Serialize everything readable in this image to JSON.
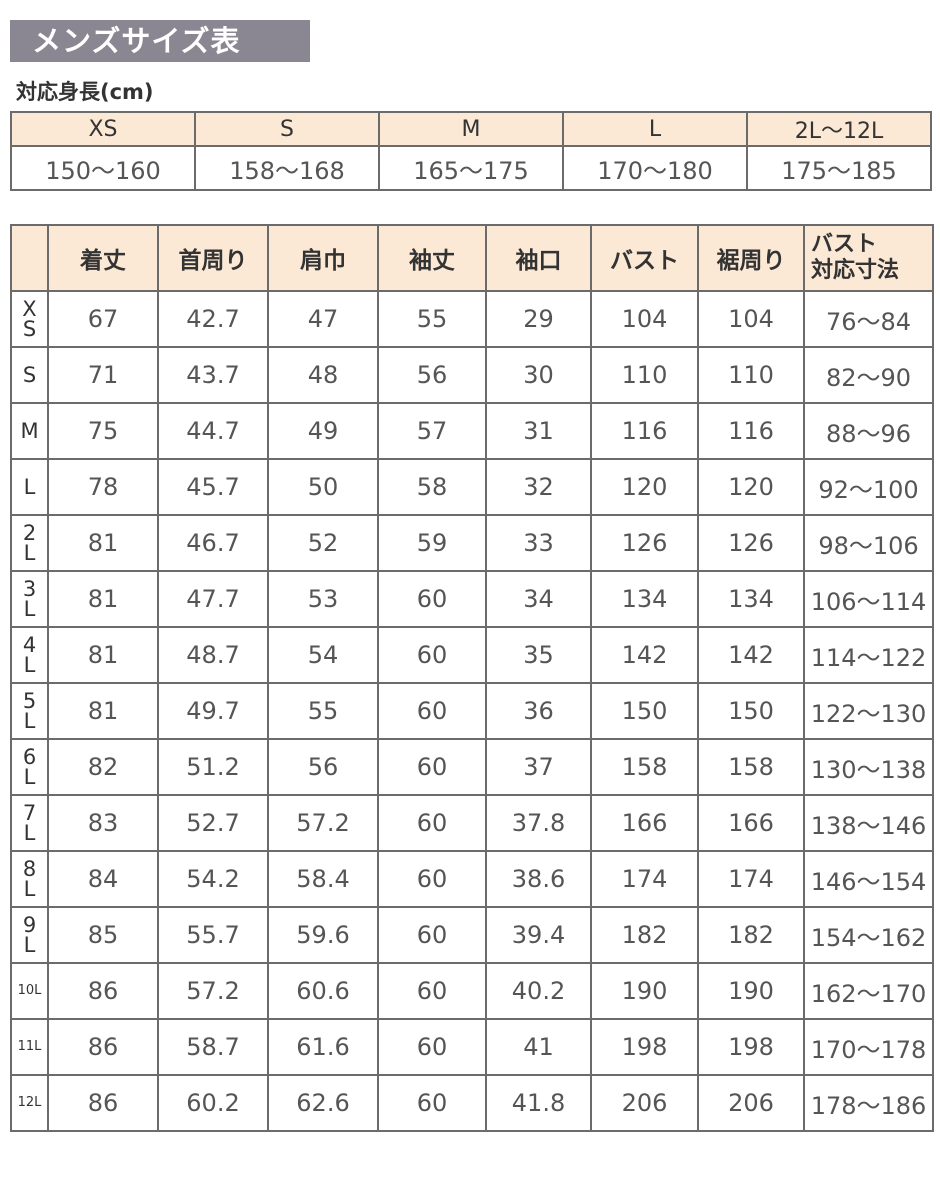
{
  "title": "メンズサイズ表",
  "height_table": {
    "caption": "対応身長(cm)",
    "sizes": [
      "XS",
      "S",
      "M",
      "L",
      "2L〜12L"
    ],
    "ranges": [
      "150〜160",
      "158〜168",
      "165〜175",
      "170〜180",
      "175〜185"
    ]
  },
  "size_table": {
    "headers": [
      "着丈",
      "首周り",
      "肩巾",
      "袖丈",
      "袖口",
      "バスト",
      "裾周り"
    ],
    "bust_header_line1": "バスト",
    "bust_header_line2": "対応寸法",
    "rows": [
      {
        "size": "XS",
        "values": [
          "67",
          "42.7",
          "47",
          "55",
          "29",
          "104",
          "104",
          "76〜84"
        ]
      },
      {
        "size": "S",
        "values": [
          "71",
          "43.7",
          "48",
          "56",
          "30",
          "110",
          "110",
          "82〜90"
        ]
      },
      {
        "size": "M",
        "values": [
          "75",
          "44.7",
          "49",
          "57",
          "31",
          "116",
          "116",
          "88〜96"
        ]
      },
      {
        "size": "L",
        "values": [
          "78",
          "45.7",
          "50",
          "58",
          "32",
          "120",
          "120",
          "92〜100"
        ]
      },
      {
        "size": "2L",
        "values": [
          "81",
          "46.7",
          "52",
          "59",
          "33",
          "126",
          "126",
          "98〜106"
        ]
      },
      {
        "size": "3L",
        "values": [
          "81",
          "47.7",
          "53",
          "60",
          "34",
          "134",
          "134",
          "106〜114"
        ]
      },
      {
        "size": "4L",
        "values": [
          "81",
          "48.7",
          "54",
          "60",
          "35",
          "142",
          "142",
          "114〜122"
        ]
      },
      {
        "size": "5L",
        "values": [
          "81",
          "49.7",
          "55",
          "60",
          "36",
          "150",
          "150",
          "122〜130"
        ]
      },
      {
        "size": "6L",
        "values": [
          "82",
          "51.2",
          "56",
          "60",
          "37",
          "158",
          "158",
          "130〜138"
        ]
      },
      {
        "size": "7L",
        "values": [
          "83",
          "52.7",
          "57.2",
          "60",
          "37.8",
          "166",
          "166",
          "138〜146"
        ]
      },
      {
        "size": "8L",
        "values": [
          "84",
          "54.2",
          "58.4",
          "60",
          "38.6",
          "174",
          "174",
          "146〜154"
        ]
      },
      {
        "size": "9L",
        "values": [
          "85",
          "55.7",
          "59.6",
          "60",
          "39.4",
          "182",
          "182",
          "154〜162"
        ]
      },
      {
        "size": "10L",
        "values": [
          "86",
          "57.2",
          "60.6",
          "60",
          "40.2",
          "190",
          "190",
          "162〜170"
        ]
      },
      {
        "size": "11L",
        "values": [
          "86",
          "58.7",
          "61.6",
          "60",
          "41",
          "198",
          "198",
          "170〜178"
        ]
      },
      {
        "size": "12L",
        "values": [
          "86",
          "60.2",
          "62.6",
          "60",
          "41.8",
          "206",
          "206",
          "178〜186"
        ]
      }
    ]
  },
  "colors": {
    "title_bg": "#8b8792",
    "header_bg": "#fbe8d5",
    "border": "#6b6b6b"
  }
}
